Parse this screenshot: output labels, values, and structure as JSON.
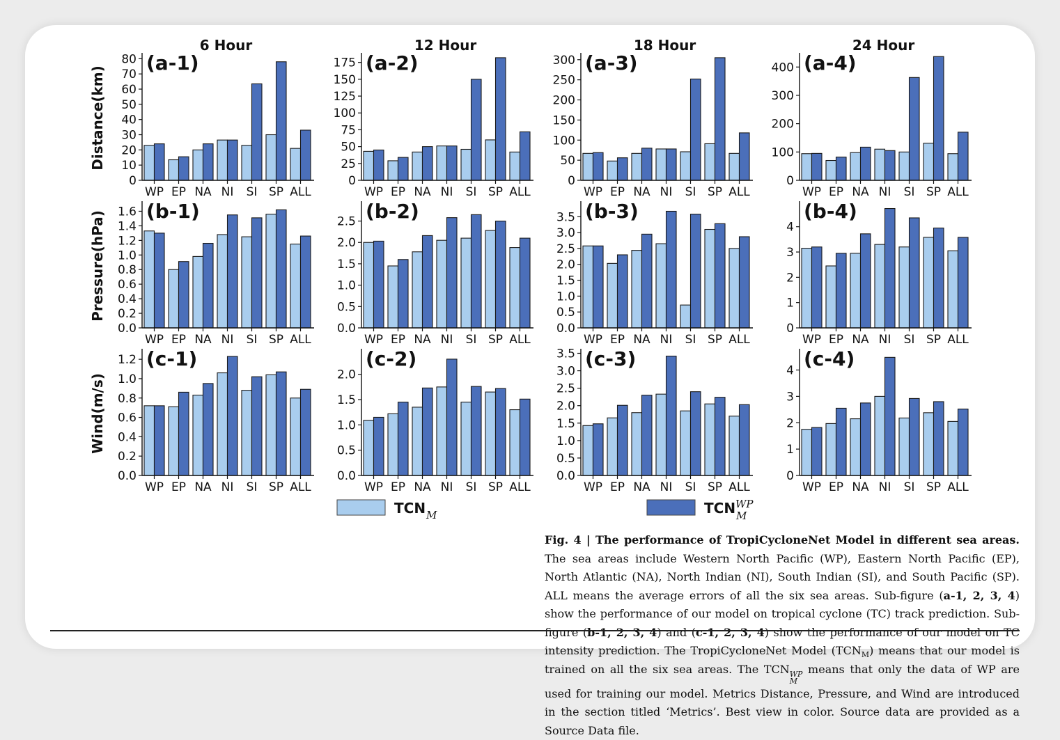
{
  "chart_data": {
    "type": "bar",
    "categories": [
      "WP",
      "EP",
      "NA",
      "NI",
      "SI",
      "SP",
      "ALL"
    ],
    "column_titles": [
      "6 Hour",
      "12 Hour",
      "18 Hour",
      "24 Hour"
    ],
    "row_ylabels": [
      "Distance(km)",
      "Pressure(hPa)",
      "Wind(m/s)"
    ],
    "colors": {
      "tcn_m": "#a9cdee",
      "tcn_wp": "#4b6fba"
    },
    "legend": {
      "placement": "bottom",
      "tcn_m_base": "TCN",
      "tcn_m_sub": "M",
      "tcn_wp_base": "TCN",
      "tcn_wp_sub": "M",
      "tcn_wp_sup": "WP"
    },
    "panels": [
      {
        "label": "(a-1)",
        "ylim": [
          0,
          82
        ],
        "yticks": [
          0,
          10,
          20,
          30,
          40,
          50,
          60,
          70,
          80
        ],
        "series": [
          {
            "values": [
              23,
              13.5,
              20,
              26.5,
              23,
              30,
              21
            ]
          },
          {
            "values": [
              24,
              15.5,
              24,
              26.5,
              63.5,
              78,
              33
            ]
          }
        ]
      },
      {
        "label": "(a-2)",
        "ylim": [
          0,
          185
        ],
        "yticks": [
          0,
          25,
          50,
          75,
          100,
          125,
          150,
          175
        ],
        "series": [
          {
            "values": [
              43,
              29,
              42,
              51,
              46,
              60,
              42
            ]
          },
          {
            "values": [
              45,
              34,
              50,
              51,
              150,
              182,
              72
            ]
          }
        ]
      },
      {
        "label": "(a-3)",
        "ylim": [
          0,
          310
        ],
        "yticks": [
          0,
          50,
          100,
          150,
          200,
          250,
          300
        ],
        "series": [
          {
            "values": [
              67,
              48,
              67,
              78,
              71,
              91,
              67
            ]
          },
          {
            "values": [
              69,
              56,
              80,
              78,
              252,
              305,
              118
            ]
          }
        ]
      },
      {
        "label": "(a-4)",
        "ylim": [
          0,
          440
        ],
        "yticks": [
          0,
          100,
          200,
          300,
          400
        ],
        "series": [
          {
            "values": [
              94,
              70,
              98,
              110,
              100,
              131,
              94
            ]
          },
          {
            "values": [
              95,
              82,
              117,
              105,
              363,
              437,
              170
            ]
          }
        ]
      },
      {
        "label": "(b-1)",
        "ylim": [
          0,
          1.7
        ],
        "yticks": [
          0.0,
          0.2,
          0.4,
          0.6,
          0.8,
          1.0,
          1.2,
          1.4,
          1.6
        ],
        "series": [
          {
            "values": [
              1.33,
              0.8,
              0.98,
              1.28,
              1.25,
              1.56,
              1.15
            ]
          },
          {
            "values": [
              1.3,
              0.91,
              1.16,
              1.55,
              1.51,
              1.62,
              1.26
            ]
          }
        ]
      },
      {
        "label": "(b-2)",
        "ylim": [
          0,
          2.9
        ],
        "yticks": [
          0.0,
          0.5,
          1.0,
          1.5,
          2.0,
          2.5
        ],
        "series": [
          {
            "values": [
              2.0,
              1.45,
              1.78,
              2.05,
              2.1,
              2.28,
              1.88
            ]
          },
          {
            "values": [
              2.03,
              1.6,
              2.16,
              2.58,
              2.65,
              2.5,
              2.1
            ]
          }
        ]
      },
      {
        "label": "(b-3)",
        "ylim": [
          0,
          3.9
        ],
        "yticks": [
          0.0,
          0.5,
          1.0,
          1.5,
          2.0,
          2.5,
          3.0,
          3.5
        ],
        "series": [
          {
            "values": [
              2.58,
              2.03,
              2.44,
              2.65,
              0.72,
              3.1,
              2.5
            ]
          },
          {
            "values": [
              2.58,
              2.3,
              2.95,
              3.67,
              3.58,
              3.28,
              2.87
            ]
          }
        ]
      },
      {
        "label": "(b-4)",
        "ylim": [
          0,
          4.9
        ],
        "yticks": [
          0,
          1,
          2,
          3,
          4
        ],
        "series": [
          {
            "values": [
              3.15,
              2.45,
              2.95,
              3.3,
              3.2,
              3.58,
              3.05
            ]
          },
          {
            "values": [
              3.2,
              2.95,
              3.72,
              4.72,
              4.35,
              3.95,
              3.58
            ]
          }
        ]
      },
      {
        "label": "(c-1)",
        "ylim": [
          0,
          1.28
        ],
        "yticks": [
          0.0,
          0.2,
          0.4,
          0.6,
          0.8,
          1.0,
          1.2
        ],
        "series": [
          {
            "values": [
              0.72,
              0.71,
              0.83,
              1.06,
              0.88,
              1.04,
              0.8
            ]
          },
          {
            "values": [
              0.72,
              0.86,
              0.95,
              1.23,
              1.02,
              1.07,
              0.89
            ]
          }
        ]
      },
      {
        "label": "(c-2)",
        "ylim": [
          0,
          2.45
        ],
        "yticks": [
          0.0,
          0.5,
          1.0,
          1.5,
          2.0
        ],
        "series": [
          {
            "values": [
              1.09,
              1.22,
              1.35,
              1.75,
              1.45,
              1.65,
              1.3
            ]
          },
          {
            "values": [
              1.15,
              1.45,
              1.73,
              2.3,
              1.76,
              1.72,
              1.51
            ]
          }
        ]
      },
      {
        "label": "(c-3)",
        "ylim": [
          0,
          3.55
        ],
        "yticks": [
          0.0,
          0.5,
          1.0,
          1.5,
          2.0,
          2.5,
          3.0,
          3.5
        ],
        "series": [
          {
            "values": [
              1.43,
              1.65,
              1.8,
              2.33,
              1.85,
              2.05,
              1.7
            ]
          },
          {
            "values": [
              1.48,
              2.01,
              2.3,
              3.42,
              2.4,
              2.24,
              2.03
            ]
          }
        ]
      },
      {
        "label": "(c-4)",
        "ylim": [
          0,
          4.7
        ],
        "yticks": [
          0,
          1,
          2,
          3,
          4
        ],
        "series": [
          {
            "values": [
              1.75,
              1.97,
              2.15,
              3.0,
              2.18,
              2.38,
              2.05
            ]
          },
          {
            "values": [
              1.82,
              2.55,
              2.75,
              4.48,
              2.92,
              2.8,
              2.52
            ]
          }
        ]
      }
    ]
  },
  "caption": {
    "fig_label": "Fig. 4 | The performance of TropiCycloneNet Model in different sea areas.",
    "p1": "The sea areas include Western North Pacific (WP), Eastern North Pacific (EP), North Atlantic (NA), North Indian (NI), South Indian (SI), and South Pacific (SP). ALL means the average errors of all the six sea areas. Sub-figure (",
    "a_ref": "a-1, 2, 3, 4",
    "p2": ") show the performance of our model on tropical cyclone (TC) track prediction. Sub-figure (",
    "b_ref": "b-1, 2, 3, 4",
    "p3": ") and (",
    "c_ref": "c-1, 2, 3, 4",
    "p4": ") show the performance of our model on TC intensity prediction. The TropiCycloneNet Model (",
    "tcn_base": "TCN",
    "tcn_sub": "M",
    "p5": ") means that our model is trained on all the six sea areas. The ",
    "tcn2_base": "TCN",
    "tcn2_sup": "WP",
    "tcn2_sub": "M",
    "p6": " means that only the data of WP are used for training our model. Metrics Distance, Pressure, and Wind are introduced in the section titled ‘Metrics’. Best view in color. Source data are provided as a Source Data file."
  }
}
